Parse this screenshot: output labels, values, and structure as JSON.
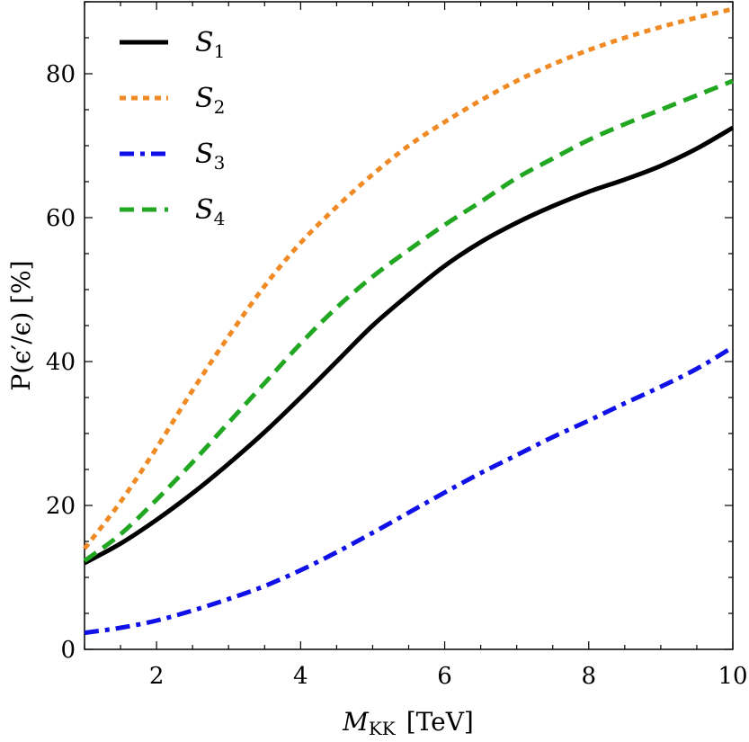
{
  "chart_data": {
    "type": "line",
    "title": "",
    "xlabel_main": "M",
    "xlabel_sub": "KK",
    "xlabel_unit": "[TeV]",
    "ylabel": "P(ϵ′/ϵ)  [%]",
    "xlim": [
      1,
      10
    ],
    "ylim": [
      0,
      90
    ],
    "xticks": [
      2,
      4,
      6,
      8,
      10
    ],
    "yticks": [
      0,
      20,
      40,
      60,
      80
    ],
    "grid": false,
    "legend_position": "top-left",
    "series": [
      {
        "name": "S",
        "sub": "1",
        "color": "#000000",
        "dash": "solid",
        "x": [
          1,
          1.5,
          2,
          2.5,
          3,
          3.5,
          4,
          4.5,
          5,
          5.5,
          6,
          6.5,
          7,
          7.5,
          8,
          8.5,
          9,
          9.5,
          10
        ],
        "y": [
          12,
          14.7,
          18,
          21.7,
          25.8,
          30.2,
          35,
          40,
          45,
          49.3,
          53.3,
          56.6,
          59.3,
          61.6,
          63.6,
          65.3,
          67.2,
          69.6,
          72.5
        ]
      },
      {
        "name": "S",
        "sub": "2",
        "color": "#f08a24",
        "dash": "dot",
        "x": [
          1,
          1.5,
          2,
          2.5,
          3,
          3.5,
          4,
          4.5,
          5,
          5.5,
          6,
          6.5,
          7,
          7.5,
          8,
          8.5,
          9,
          9.5,
          10
        ],
        "y": [
          14,
          20.5,
          28,
          36,
          43.5,
          50.5,
          56.5,
          61.5,
          66,
          70,
          73.3,
          76.3,
          79,
          81.3,
          83.3,
          85,
          86.5,
          87.8,
          89
        ]
      },
      {
        "name": "S",
        "sub": "3",
        "color": "#1010e8",
        "dash": "dashdot",
        "x": [
          1,
          1.5,
          2,
          2.5,
          3,
          3.5,
          4,
          4.5,
          5,
          5.5,
          6,
          6.5,
          7,
          7.5,
          8,
          8.5,
          9,
          9.5,
          10
        ],
        "y": [
          2.3,
          3,
          4,
          5.4,
          7,
          8.8,
          11,
          13.5,
          16.2,
          19,
          21.8,
          24.5,
          27,
          29.5,
          31.8,
          34.2,
          36.5,
          39,
          42
        ]
      },
      {
        "name": "S",
        "sub": "4",
        "color": "#22a722",
        "dash": "dash",
        "x": [
          1,
          1.5,
          2,
          2.5,
          3,
          3.5,
          4,
          4.5,
          5,
          5.5,
          6,
          6.5,
          7,
          7.5,
          8,
          8.5,
          9,
          9.5,
          10
        ],
        "y": [
          12.3,
          16,
          20.8,
          26,
          31.5,
          37,
          42.5,
          47.5,
          51.8,
          55.5,
          59,
          62.2,
          65.5,
          68.2,
          70.8,
          73,
          75,
          77,
          79
        ]
      }
    ]
  }
}
